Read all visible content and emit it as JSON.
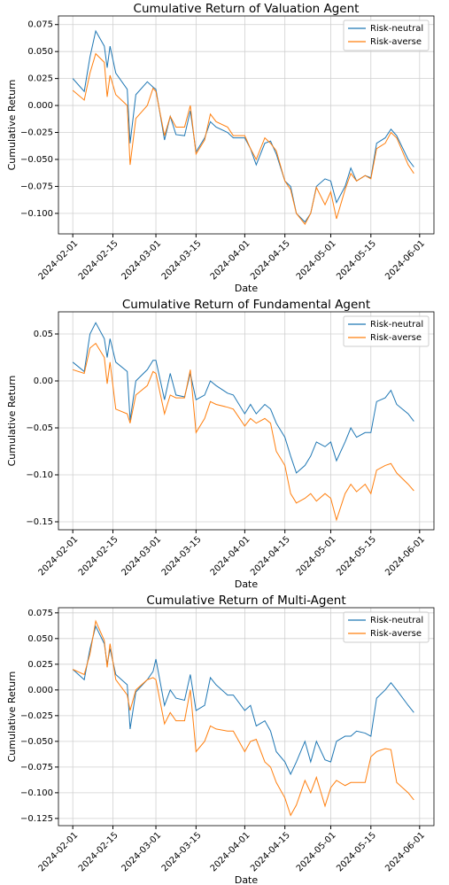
{
  "chart_data": [
    {
      "type": "line",
      "title": "Cumulative Return of Valuation Agent",
      "x_label": "Date",
      "y_label": "Cumulative Return",
      "x": [
        "2024-02-01",
        "2024-02-05",
        "2024-02-07",
        "2024-02-09",
        "2024-02-12",
        "2024-02-13",
        "2024-02-14",
        "2024-02-16",
        "2024-02-20",
        "2024-02-21",
        "2024-02-23",
        "2024-02-27",
        "2024-02-29",
        "2024-03-01",
        "2024-03-04",
        "2024-03-06",
        "2024-03-08",
        "2024-03-11",
        "2024-03-13",
        "2024-03-15",
        "2024-03-18",
        "2024-03-20",
        "2024-03-22",
        "2024-03-26",
        "2024-03-28",
        "2024-04-01",
        "2024-04-03",
        "2024-04-05",
        "2024-04-08",
        "2024-04-10",
        "2024-04-12",
        "2024-04-15",
        "2024-04-17",
        "2024-04-19",
        "2024-04-22",
        "2024-04-24",
        "2024-04-26",
        "2024-04-29",
        "2024-05-01",
        "2024-05-03",
        "2024-05-06",
        "2024-05-08",
        "2024-05-10",
        "2024-05-13",
        "2024-05-15",
        "2024-05-17",
        "2024-05-20",
        "2024-05-22",
        "2024-05-24",
        "2024-05-28",
        "2024-05-30"
      ],
      "series": [
        {
          "name": "Risk-neutral",
          "color": "#1f77b4",
          "values": [
            0.025,
            0.013,
            0.045,
            0.069,
            0.055,
            0.035,
            0.055,
            0.03,
            0.015,
            -0.035,
            0.01,
            0.022,
            0.017,
            0.015,
            -0.032,
            -0.01,
            -0.027,
            -0.028,
            -0.005,
            -0.043,
            -0.03,
            -0.015,
            -0.02,
            -0.025,
            -0.03,
            -0.03,
            -0.04,
            -0.055,
            -0.035,
            -0.033,
            -0.045,
            -0.07,
            -0.075,
            -0.1,
            -0.108,
            -0.1,
            -0.075,
            -0.068,
            -0.07,
            -0.09,
            -0.075,
            -0.058,
            -0.07,
            -0.065,
            -0.067,
            -0.035,
            -0.03,
            -0.022,
            -0.028,
            -0.05,
            -0.057
          ]
        },
        {
          "name": "Risk-averse",
          "color": "#ff7f0e",
          "values": [
            0.014,
            0.005,
            0.03,
            0.048,
            0.04,
            0.008,
            0.028,
            0.01,
            0,
            -0.055,
            -0.012,
            0,
            0.016,
            0.013,
            -0.028,
            -0.01,
            -0.02,
            -0.02,
            0,
            -0.045,
            -0.032,
            -0.008,
            -0.015,
            -0.02,
            -0.028,
            -0.028,
            -0.04,
            -0.05,
            -0.03,
            -0.035,
            -0.042,
            -0.07,
            -0.078,
            -0.1,
            -0.11,
            -0.1,
            -0.076,
            -0.092,
            -0.08,
            -0.105,
            -0.078,
            -0.063,
            -0.07,
            -0.065,
            -0.068,
            -0.04,
            -0.035,
            -0.025,
            -0.03,
            -0.055,
            -0.063
          ]
        }
      ],
      "xlim": [
        "2024-01-27",
        "2024-06-06"
      ],
      "xticks": [
        "2024-02-01",
        "2024-02-15",
        "2024-03-01",
        "2024-03-15",
        "2024-04-01",
        "2024-04-15",
        "2024-05-01",
        "2024-05-15",
        "2024-06-01"
      ],
      "ylim": [
        -0.119,
        0.083
      ],
      "yticks": [
        {
          "value": -0.1,
          "label": "−0.100"
        },
        {
          "value": -0.075,
          "label": "−0.075"
        },
        {
          "value": -0.05,
          "label": "−0.050"
        },
        {
          "value": -0.025,
          "label": "−0.025"
        },
        {
          "value": 0,
          "label": "0.000"
        },
        0.025,
        {
          "value": 0.05,
          "label": "0.050"
        },
        0.075
      ],
      "grid": true,
      "legend": "upper right"
    },
    {
      "type": "line",
      "title": "Cumulative Return of Fundamental Agent",
      "x_label": "Date",
      "y_label": "Cumulative Return",
      "x": [
        "2024-02-01",
        "2024-02-05",
        "2024-02-07",
        "2024-02-09",
        "2024-02-12",
        "2024-02-13",
        "2024-02-14",
        "2024-02-16",
        "2024-02-20",
        "2024-02-21",
        "2024-02-23",
        "2024-02-27",
        "2024-02-29",
        "2024-03-01",
        "2024-03-04",
        "2024-03-06",
        "2024-03-08",
        "2024-03-11",
        "2024-03-13",
        "2024-03-15",
        "2024-03-18",
        "2024-03-20",
        "2024-03-22",
        "2024-03-26",
        "2024-03-28",
        "2024-04-01",
        "2024-04-03",
        "2024-04-05",
        "2024-04-08",
        "2024-04-10",
        "2024-04-12",
        "2024-04-15",
        "2024-04-17",
        "2024-04-19",
        "2024-04-22",
        "2024-04-24",
        "2024-04-26",
        "2024-04-29",
        "2024-05-01",
        "2024-05-03",
        "2024-05-06",
        "2024-05-08",
        "2024-05-10",
        "2024-05-13",
        "2024-05-15",
        "2024-05-17",
        "2024-05-20",
        "2024-05-22",
        "2024-05-24",
        "2024-05-28",
        "2024-05-30"
      ],
      "series": [
        {
          "name": "Risk-neutral",
          "color": "#1f77b4",
          "values": [
            0.02,
            0.01,
            0.05,
            0.062,
            0.045,
            0.025,
            0.045,
            0.02,
            0.01,
            -0.042,
            0,
            0.012,
            0.022,
            0.022,
            -0.02,
            0.008,
            -0.015,
            -0.017,
            0.008,
            -0.02,
            -0.015,
            0,
            -0.005,
            -0.013,
            -0.015,
            -0.035,
            -0.025,
            -0.035,
            -0.025,
            -0.03,
            -0.045,
            -0.06,
            -0.08,
            -0.098,
            -0.09,
            -0.08,
            -0.065,
            -0.07,
            -0.065,
            -0.085,
            -0.065,
            -0.05,
            -0.06,
            -0.055,
            -0.055,
            -0.022,
            -0.018,
            -0.01,
            -0.025,
            -0.035,
            -0.043
          ]
        },
        {
          "name": "Risk-averse",
          "color": "#ff7f0e",
          "values": [
            0.012,
            0.008,
            0.035,
            0.04,
            0.025,
            -0.003,
            0.02,
            -0.03,
            -0.035,
            -0.045,
            -0.015,
            -0.005,
            0.01,
            0.008,
            -0.035,
            -0.015,
            -0.018,
            -0.018,
            0.012,
            -0.055,
            -0.04,
            -0.022,
            -0.025,
            -0.028,
            -0.03,
            -0.048,
            -0.04,
            -0.045,
            -0.04,
            -0.045,
            -0.075,
            -0.09,
            -0.12,
            -0.13,
            -0.125,
            -0.12,
            -0.128,
            -0.12,
            -0.125,
            -0.148,
            -0.12,
            -0.11,
            -0.118,
            -0.11,
            -0.12,
            -0.095,
            -0.09,
            -0.088,
            -0.098,
            -0.11,
            -0.117
          ]
        }
      ],
      "xlim": [
        "2024-01-27",
        "2024-06-06"
      ],
      "xticks": [
        "2024-02-01",
        "2024-02-15",
        "2024-03-01",
        "2024-03-15",
        "2024-04-01",
        "2024-04-15",
        "2024-05-01",
        "2024-05-15",
        "2024-06-01"
      ],
      "ylim": [
        -0.1585,
        0.0736
      ],
      "yticks": [
        {
          "value": -0.15,
          "label": "−0.15"
        },
        {
          "value": -0.1,
          "label": "−0.10"
        },
        {
          "value": -0.05,
          "label": "−0.05"
        },
        {
          "value": 0,
          "label": "0.00"
        },
        0.05
      ],
      "grid": true,
      "legend": "upper right"
    },
    {
      "type": "line",
      "title": "Cumulative Return of Multi-Agent",
      "x_label": "Date",
      "y_label": "Cumulative Return",
      "x": [
        "2024-02-01",
        "2024-02-05",
        "2024-02-07",
        "2024-02-09",
        "2024-02-12",
        "2024-02-13",
        "2024-02-14",
        "2024-02-16",
        "2024-02-20",
        "2024-02-21",
        "2024-02-23",
        "2024-02-27",
        "2024-02-29",
        "2024-03-01",
        "2024-03-04",
        "2024-03-06",
        "2024-03-08",
        "2024-03-11",
        "2024-03-13",
        "2024-03-15",
        "2024-03-18",
        "2024-03-20",
        "2024-03-22",
        "2024-03-26",
        "2024-03-28",
        "2024-04-01",
        "2024-04-03",
        "2024-04-05",
        "2024-04-08",
        "2024-04-10",
        "2024-04-12",
        "2024-04-15",
        "2024-04-17",
        "2024-04-19",
        "2024-04-22",
        "2024-04-24",
        "2024-04-26",
        "2024-04-29",
        "2024-05-01",
        "2024-05-03",
        "2024-05-06",
        "2024-05-08",
        "2024-05-10",
        "2024-05-13",
        "2024-05-15",
        "2024-05-17",
        "2024-05-20",
        "2024-05-22",
        "2024-05-24",
        "2024-05-28",
        "2024-05-30"
      ],
      "series": [
        {
          "name": "Risk-neutral",
          "color": "#1f77b4",
          "values": [
            0.02,
            0.01,
            0.04,
            0.062,
            0.045,
            0.025,
            0.04,
            0.015,
            0.005,
            -0.038,
            -0.002,
            0.01,
            0.018,
            0.03,
            -0.015,
            0,
            -0.008,
            -0.01,
            0.015,
            -0.02,
            -0.015,
            0.012,
            0.005,
            -0.005,
            -0.005,
            -0.02,
            -0.015,
            -0.035,
            -0.03,
            -0.04,
            -0.06,
            -0.07,
            -0.082,
            -0.07,
            -0.05,
            -0.07,
            -0.05,
            -0.068,
            -0.07,
            -0.05,
            -0.045,
            -0.045,
            -0.04,
            -0.042,
            -0.045,
            -0.008,
            0,
            0.007,
            0,
            -0.015,
            -0.022
          ]
        },
        {
          "name": "Risk-averse",
          "color": "#ff7f0e",
          "values": [
            0.02,
            0.015,
            0.035,
            0.067,
            0.048,
            0.022,
            0.045,
            0.01,
            -0.005,
            -0.02,
            0,
            0.01,
            0.012,
            0.01,
            -0.033,
            -0.022,
            -0.03,
            -0.03,
            0,
            -0.06,
            -0.05,
            -0.035,
            -0.038,
            -0.04,
            -0.04,
            -0.06,
            -0.05,
            -0.048,
            -0.07,
            -0.075,
            -0.09,
            -0.105,
            -0.122,
            -0.112,
            -0.088,
            -0.1,
            -0.085,
            -0.113,
            -0.095,
            -0.088,
            -0.093,
            -0.09,
            -0.09,
            -0.09,
            -0.065,
            -0.06,
            -0.057,
            -0.058,
            -0.09,
            -0.1,
            -0.107
          ]
        }
      ],
      "xlim": [
        "2024-01-27",
        "2024-06-06"
      ],
      "xticks": [
        "2024-02-01",
        "2024-02-15",
        "2024-03-01",
        "2024-03-15",
        "2024-04-01",
        "2024-04-15",
        "2024-05-01",
        "2024-05-15",
        "2024-06-01"
      ],
      "ylim": [
        -0.132,
        0.08
      ],
      "yticks": [
        {
          "value": -0.125,
          "label": "−0.125"
        },
        {
          "value": -0.1,
          "label": "−0.100"
        },
        {
          "value": -0.075,
          "label": "−0.075"
        },
        {
          "value": -0.05,
          "label": "−0.050"
        },
        {
          "value": -0.025,
          "label": "−0.025"
        },
        {
          "value": 0,
          "label": "0.000"
        },
        0.025,
        {
          "value": 0.05,
          "label": "0.050"
        },
        0.075
      ],
      "grid": true,
      "legend": "upper right"
    }
  ]
}
